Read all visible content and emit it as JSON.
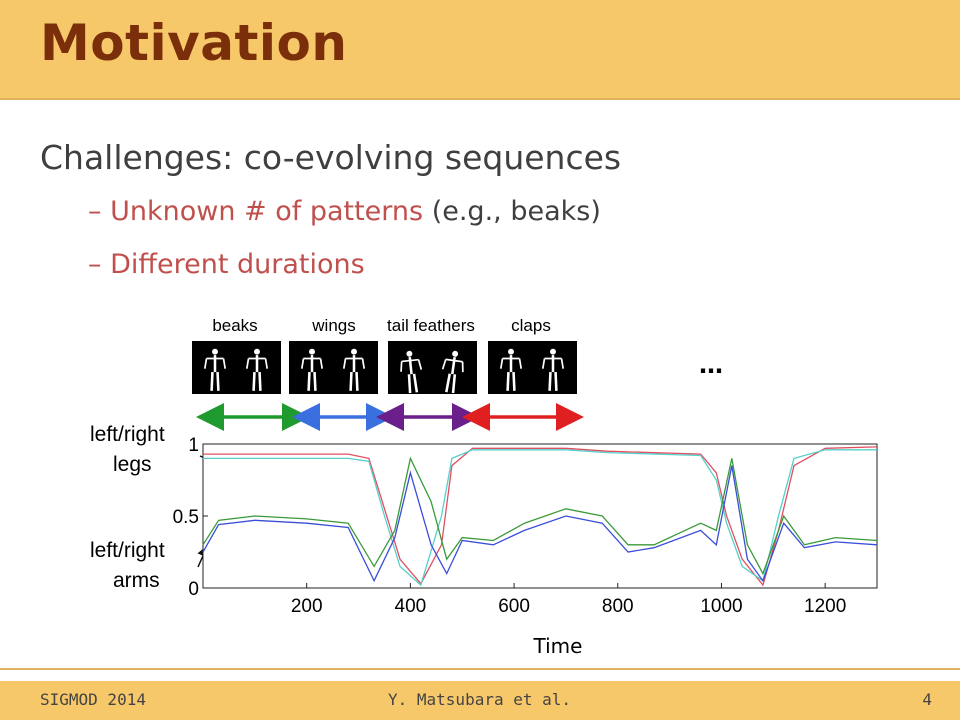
{
  "slide": {
    "title": "Motivation",
    "heading": "Challenges: co-evolving sequences",
    "bullets": [
      {
        "dash": "–",
        "text": "Unknown # of patterns",
        "example": "(e.g., beaks)"
      },
      {
        "dash": "–",
        "text": "Different durations",
        "example": ""
      }
    ]
  },
  "figure": {
    "patterns": [
      "beaks",
      "wings",
      "tail feathers",
      "claps"
    ],
    "ellipsis": "…",
    "arrow_colors": [
      "#1f9a2e",
      "#3a6fe0",
      "#6a1f8a",
      "#e02020"
    ],
    "annotations": {
      "legs": [
        "left/right",
        "legs"
      ],
      "arms": [
        "left/right",
        "arms"
      ]
    },
    "xlabel": "Time"
  },
  "chart_data": {
    "type": "line",
    "xlabel": "Time",
    "ylabel": "",
    "xlim": [
      0,
      1300
    ],
    "ylim": [
      0,
      1
    ],
    "xticks": [
      200,
      400,
      600,
      800,
      1000,
      1200
    ],
    "yticks": [
      0,
      0.5,
      1
    ],
    "grid": false,
    "series": [
      {
        "color": "#e05060",
        "points": [
          [
            0,
            0.93
          ],
          [
            100,
            0.93
          ],
          [
            280,
            0.93
          ],
          [
            320,
            0.9
          ],
          [
            350,
            0.55
          ],
          [
            380,
            0.2
          ],
          [
            420,
            0.03
          ],
          [
            460,
            0.3
          ],
          [
            480,
            0.85
          ],
          [
            520,
            0.97
          ],
          [
            700,
            0.97
          ],
          [
            780,
            0.95
          ],
          [
            960,
            0.93
          ],
          [
            990,
            0.8
          ],
          [
            1010,
            0.5
          ],
          [
            1040,
            0.2
          ],
          [
            1080,
            0.02
          ],
          [
            1110,
            0.4
          ],
          [
            1140,
            0.85
          ],
          [
            1200,
            0.97
          ],
          [
            1300,
            0.98
          ]
        ]
      },
      {
        "color": "#55d0cc",
        "points": [
          [
            0,
            0.9
          ],
          [
            100,
            0.9
          ],
          [
            280,
            0.9
          ],
          [
            320,
            0.88
          ],
          [
            350,
            0.5
          ],
          [
            380,
            0.15
          ],
          [
            420,
            0.02
          ],
          [
            460,
            0.5
          ],
          [
            480,
            0.9
          ],
          [
            520,
            0.96
          ],
          [
            700,
            0.96
          ],
          [
            780,
            0.94
          ],
          [
            960,
            0.92
          ],
          [
            990,
            0.75
          ],
          [
            1010,
            0.45
          ],
          [
            1040,
            0.15
          ],
          [
            1080,
            0.05
          ],
          [
            1110,
            0.5
          ],
          [
            1140,
            0.9
          ],
          [
            1200,
            0.96
          ],
          [
            1300,
            0.96
          ]
        ]
      },
      {
        "color": "#3a9a3a",
        "points": [
          [
            0,
            0.3
          ],
          [
            30,
            0.47
          ],
          [
            100,
            0.5
          ],
          [
            200,
            0.48
          ],
          [
            280,
            0.45
          ],
          [
            330,
            0.15
          ],
          [
            370,
            0.4
          ],
          [
            400,
            0.9
          ],
          [
            440,
            0.6
          ],
          [
            470,
            0.2
          ],
          [
            500,
            0.35
          ],
          [
            560,
            0.33
          ],
          [
            620,
            0.45
          ],
          [
            700,
            0.55
          ],
          [
            770,
            0.5
          ],
          [
            820,
            0.3
          ],
          [
            870,
            0.3
          ],
          [
            960,
            0.45
          ],
          [
            990,
            0.4
          ],
          [
            1020,
            0.9
          ],
          [
            1050,
            0.3
          ],
          [
            1080,
            0.1
          ],
          [
            1120,
            0.5
          ],
          [
            1160,
            0.3
          ],
          [
            1220,
            0.35
          ],
          [
            1300,
            0.33
          ]
        ]
      },
      {
        "color": "#3b4ed8",
        "points": [
          [
            0,
            0.25
          ],
          [
            30,
            0.44
          ],
          [
            100,
            0.47
          ],
          [
            200,
            0.45
          ],
          [
            280,
            0.42
          ],
          [
            330,
            0.05
          ],
          [
            370,
            0.35
          ],
          [
            400,
            0.8
          ],
          [
            440,
            0.3
          ],
          [
            470,
            0.1
          ],
          [
            500,
            0.33
          ],
          [
            560,
            0.3
          ],
          [
            620,
            0.4
          ],
          [
            700,
            0.5
          ],
          [
            770,
            0.45
          ],
          [
            820,
            0.25
          ],
          [
            870,
            0.28
          ],
          [
            960,
            0.4
          ],
          [
            990,
            0.3
          ],
          [
            1020,
            0.85
          ],
          [
            1050,
            0.2
          ],
          [
            1080,
            0.05
          ],
          [
            1120,
            0.45
          ],
          [
            1160,
            0.28
          ],
          [
            1220,
            0.32
          ],
          [
            1300,
            0.3
          ]
        ]
      }
    ]
  },
  "footer": {
    "left": "SIGMOD 2014",
    "middle": "Y. Matsubara et al.",
    "right": "4"
  }
}
